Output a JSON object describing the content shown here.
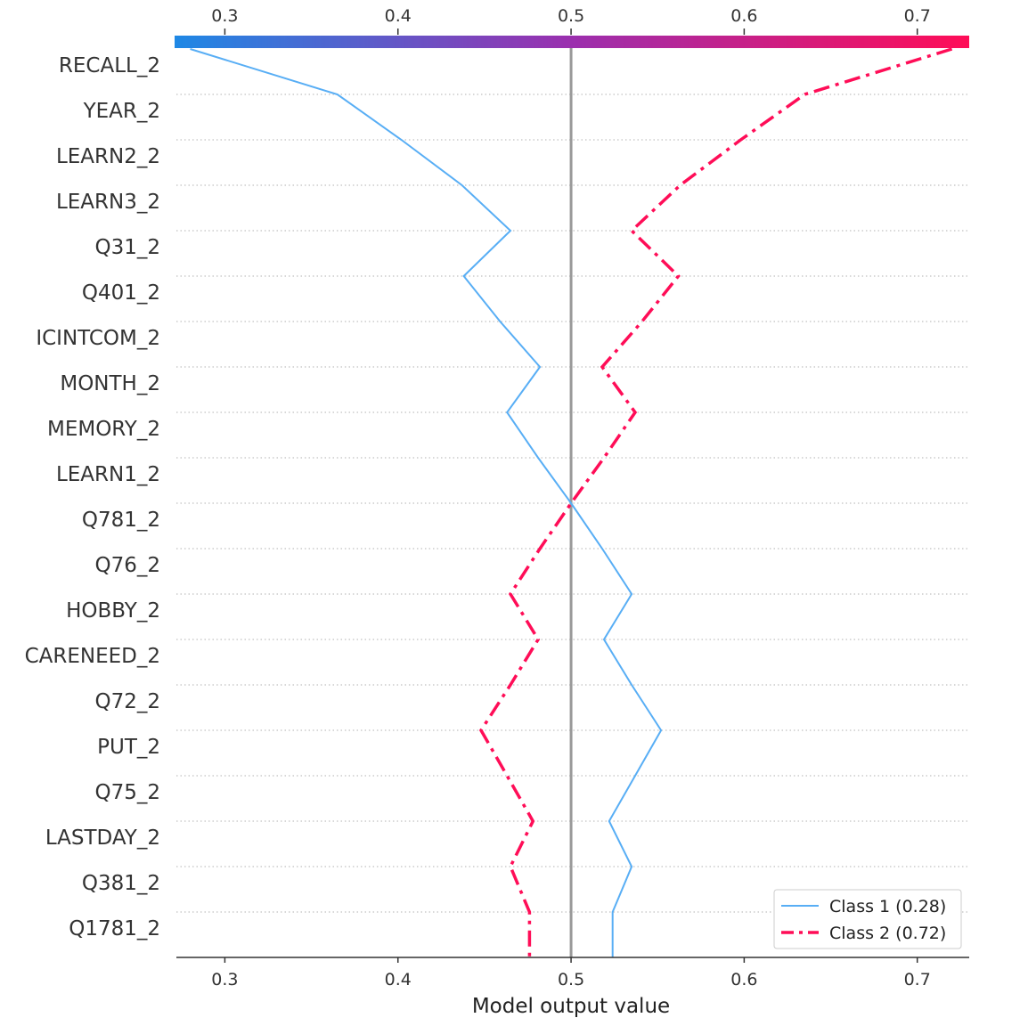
{
  "chart_data": {
    "type": "line",
    "chart_kind": "decision_plot",
    "xlabel": "Model output value",
    "xlim": [
      0.272,
      0.73
    ],
    "xticks": [
      "0.3",
      "0.4",
      "0.5",
      "0.6",
      "0.7"
    ],
    "base_value": 0.5,
    "features": [
      "RECALL_2",
      "YEAR_2",
      "LEARN2_2",
      "LEARN3_2",
      "Q31_2",
      "Q401_2",
      "ICINTCOM_2",
      "MONTH_2",
      "MEMORY_2",
      "LEARN1_2",
      "Q781_2",
      "Q76_2",
      "HOBBY_2",
      "CARENEED_2",
      "Q72_2",
      "PUT_2",
      "Q75_2",
      "LASTDAY_2",
      "Q381_2",
      "Q1781_2"
    ],
    "grid": "dotted horizontal",
    "colorbar": {
      "from": "#1e88e5",
      "mid": "#9b2fae",
      "to": "#ff0d57"
    },
    "legend_position": "lower-right",
    "series": [
      {
        "name": "Class 1 (0.28)",
        "color": "#58aef5",
        "style": "solid",
        "values": [
          0.28,
          0.365,
          0.402,
          0.437,
          0.465,
          0.438,
          0.459,
          0.482,
          0.463,
          0.481,
          0.5,
          0.518,
          0.535,
          0.519,
          0.535,
          0.552,
          0.537,
          0.522,
          0.535,
          0.524,
          0.524
        ]
      },
      {
        "name": "Class 2 (0.72)",
        "color": "#ff0d57",
        "style": "dashdot",
        "values": [
          0.72,
          0.635,
          0.598,
          0.563,
          0.535,
          0.562,
          0.541,
          0.518,
          0.537,
          0.519,
          0.5,
          0.482,
          0.465,
          0.481,
          0.465,
          0.448,
          0.463,
          0.478,
          0.465,
          0.476,
          0.476
        ]
      }
    ]
  }
}
